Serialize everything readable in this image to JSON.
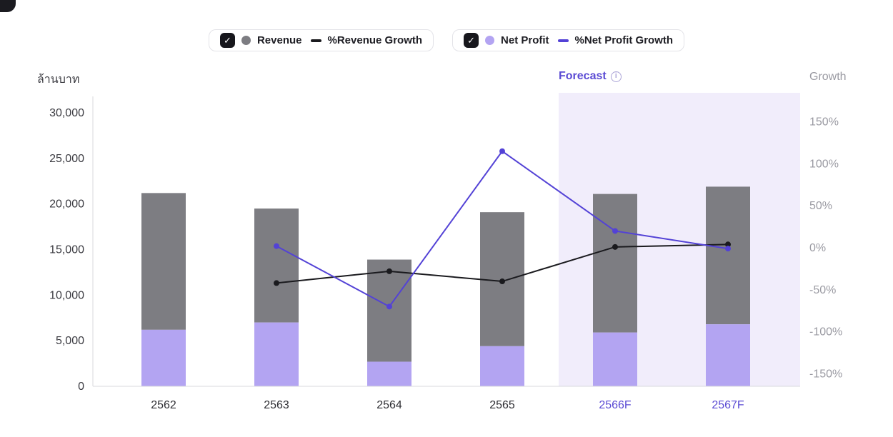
{
  "colors": {
    "accent": "#5b4bd4",
    "forecast_bg": "#f1edfb",
    "bar_gray": "#7d7d82",
    "bar_purple": "#b3a4f2",
    "line_black": "#1a1a1e",
    "line_purple": "#5342d6",
    "axis_text": "#3a3a40",
    "muted_text": "#9a9aa2"
  },
  "icons": {
    "checkbox_check": "✓",
    "info": "i"
  },
  "legend": {
    "series1": {
      "checked": true,
      "marker_color": "#7d7d82",
      "marker_label": "Revenue",
      "line_color": "#1a1a1e",
      "line_label": "%Revenue Growth"
    },
    "series2": {
      "checked": true,
      "marker_color": "#b3a4f2",
      "marker_label": "Net Profit",
      "line_color": "#5342d6",
      "line_label": "%Net Profit Growth"
    }
  },
  "axes": {
    "left_title": "ล้านบาท",
    "right_title": "Growth",
    "forecast_label": "Forecast"
  },
  "chart_data": {
    "type": "bar+line",
    "title": "",
    "categories": [
      "2562",
      "2563",
      "2564",
      "2565",
      "2566F",
      "2567F"
    ],
    "forecast_categories": [
      "2566F",
      "2567F"
    ],
    "bar_series": [
      {
        "name": "Revenue",
        "color": "#7d7d82",
        "role": "total-bar-height",
        "values": [
          21200,
          19500,
          13900,
          19100,
          21100,
          21900
        ]
      },
      {
        "name": "Net Profit",
        "color": "#b3a4f2",
        "role": "bottom-segment",
        "values": [
          6200,
          7000,
          2700,
          4400,
          5900,
          6800
        ]
      }
    ],
    "line_series": [
      {
        "name": "%Revenue Growth",
        "color": "#1a1a1e",
        "values": [
          null,
          -42,
          -28,
          -40,
          1,
          4
        ]
      },
      {
        "name": "%Net Profit Growth",
        "color": "#5342d6",
        "values": [
          null,
          2,
          -70,
          115,
          20,
          -1
        ]
      }
    ],
    "left_axis": {
      "title": "ล้านบาท",
      "unit": "ล้านบาท",
      "max": 30000,
      "ticks": [
        0,
        5000,
        10000,
        15000,
        20000,
        25000,
        30000
      ]
    },
    "right_axis": {
      "title": "Growth",
      "ticks_pct": [
        150,
        100,
        50,
        0,
        -50,
        -100,
        -150
      ]
    },
    "forecast_region": {
      "label": "Forecast",
      "bg": "#f1edfb"
    },
    "grid": false,
    "legend_position": "top-center"
  }
}
